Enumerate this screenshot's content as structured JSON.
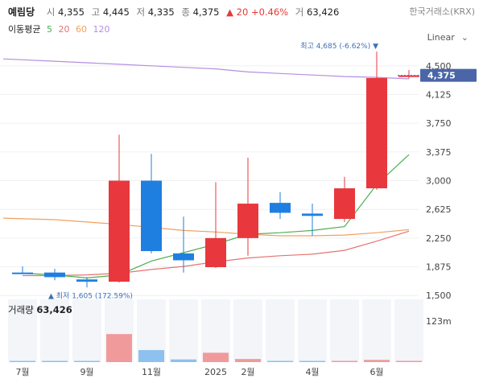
{
  "header": {
    "name": "예림당",
    "open_label": "시",
    "open": "4,355",
    "high_label": "고",
    "high": "4,445",
    "low_label": "저",
    "low": "4,335",
    "close_label": "종",
    "close": "4,375",
    "change": "▲ 20 +0.46%",
    "volume_label": "거",
    "volume": "63,426",
    "exchange": "한국거래소(KRX)"
  },
  "ma_legend": {
    "label": "이동평균",
    "p5": "5",
    "p20": "20",
    "p60": "60",
    "p120": "120",
    "c5": "#4caf50",
    "c20": "#e57373",
    "c60": "#f0a060",
    "c120": "#b48fe0"
  },
  "scale_selector": {
    "label": "Linear"
  },
  "annotations": {
    "max_label": "최고 4,685 (-6.62%) ▼",
    "min_label": "▲ 최저 1,605 (172.59%)"
  },
  "price_tag": "4,375",
  "volume_panel": {
    "label": "거래량",
    "value": "63,426",
    "axis_max_label": "123m"
  },
  "chart_data": {
    "type": "candlestick",
    "colors": {
      "up": "#e8383d",
      "down": "#1e7fe0",
      "up_volume": "#f09a9c",
      "down_volume": "#8ec0f0"
    },
    "y_ticks": [
      1500,
      1875,
      2250,
      2625,
      3000,
      3375,
      3750,
      4125,
      4500
    ],
    "y_tick_labels": [
      "1,500",
      "1,875",
      "2,250",
      "2,625",
      "3,000",
      "3,375",
      "3,750",
      "4,125",
      "4,500"
    ],
    "ylim": [
      1450,
      4750
    ],
    "x_labels": [
      {
        "label": "7월",
        "index": 0
      },
      {
        "label": "9월",
        "index": 2
      },
      {
        "label": "11월",
        "index": 4
      },
      {
        "label": "2025",
        "index": 6
      },
      {
        "label": "2월",
        "index": 7
      },
      {
        "label": "4월",
        "index": 9
      },
      {
        "label": "6월",
        "index": 11
      }
    ],
    "candles": [
      {
        "open": 1800,
        "high": 1880,
        "low": 1780,
        "close": 1790,
        "volume": 0.4
      },
      {
        "open": 1800,
        "high": 1850,
        "low": 1700,
        "close": 1740,
        "volume": 0.4
      },
      {
        "open": 1710,
        "high": 1740,
        "low": 1605,
        "close": 1680,
        "volume": 0.4
      },
      {
        "open": 1680,
        "high": 3600,
        "low": 1670,
        "close": 3000,
        "volume": 63
      },
      {
        "open": 3000,
        "high": 3350,
        "low": 2050,
        "close": 2080,
        "volume": 27
      },
      {
        "open": 2050,
        "high": 2530,
        "low": 1800,
        "close": 1960,
        "volume": 6
      },
      {
        "open": 1870,
        "high": 2980,
        "low": 1860,
        "close": 2250,
        "volume": 21
      },
      {
        "open": 2250,
        "high": 3300,
        "low": 2020,
        "close": 2700,
        "volume": 7
      },
      {
        "open": 2710,
        "high": 2850,
        "low": 2500,
        "close": 2580,
        "volume": 1.5
      },
      {
        "open": 2570,
        "high": 2700,
        "low": 2280,
        "close": 2540,
        "volume": 1.5
      },
      {
        "open": 2500,
        "high": 3050,
        "low": 2460,
        "close": 2900,
        "volume": 1.5
      },
      {
        "open": 2900,
        "high": 4685,
        "low": 2880,
        "close": 4340,
        "volume": 5
      },
      {
        "open": 4355,
        "high": 4445,
        "low": 4335,
        "close": 4375,
        "volume": 1
      }
    ],
    "volume_max": 123,
    "ma": {
      "ma5": [
        1790,
        1770,
        1730,
        1770,
        1950,
        2060,
        2170,
        2300,
        2320,
        2350,
        2400,
        2950,
        3340
      ],
      "ma20": [
        1760,
        1760,
        1770,
        1790,
        1840,
        1880,
        1940,
        1990,
        2020,
        2040,
        2090,
        2210,
        2340
      ],
      "ma60": [
        2510,
        2490,
        2460,
        2430,
        2390,
        2350,
        2330,
        2300,
        2280,
        2280,
        2290,
        2320,
        2360
      ],
      "ma120": [
        4590,
        4560,
        4540,
        4520,
        4500,
        4480,
        4460,
        4420,
        4400,
        4380,
        4360,
        4350,
        4330
      ]
    }
  }
}
